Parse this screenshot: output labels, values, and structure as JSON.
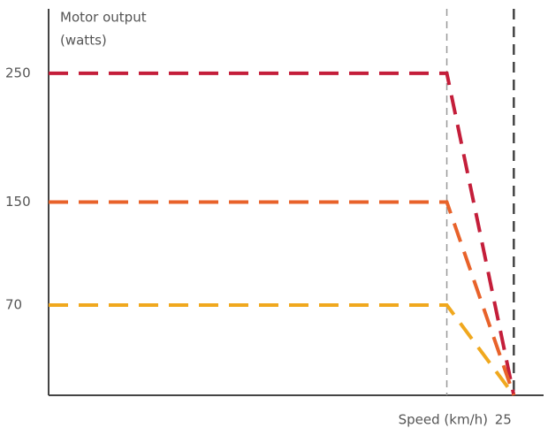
{
  "chart_data": {
    "type": "line",
    "ylabel": [
      "Motor output",
      "(watts)"
    ],
    "xlabel": "Speed (km/h)",
    "x": [
      0,
      21.4,
      25
    ],
    "series": [
      {
        "color": "#c41e3a",
        "values": [
          250,
          250,
          0
        ]
      },
      {
        "color": "#e8622a",
        "values": [
          150,
          150,
          0
        ]
      },
      {
        "color": "#f0a81e",
        "values": [
          70,
          70,
          0
        ]
      }
    ],
    "xlim": [
      0,
      26.6
    ],
    "xticks": [
      25
    ],
    "reference_lines": [
      21.4
    ],
    "ylim": [
      0,
      300
    ],
    "yticks": [
      70,
      150,
      250
    ]
  }
}
